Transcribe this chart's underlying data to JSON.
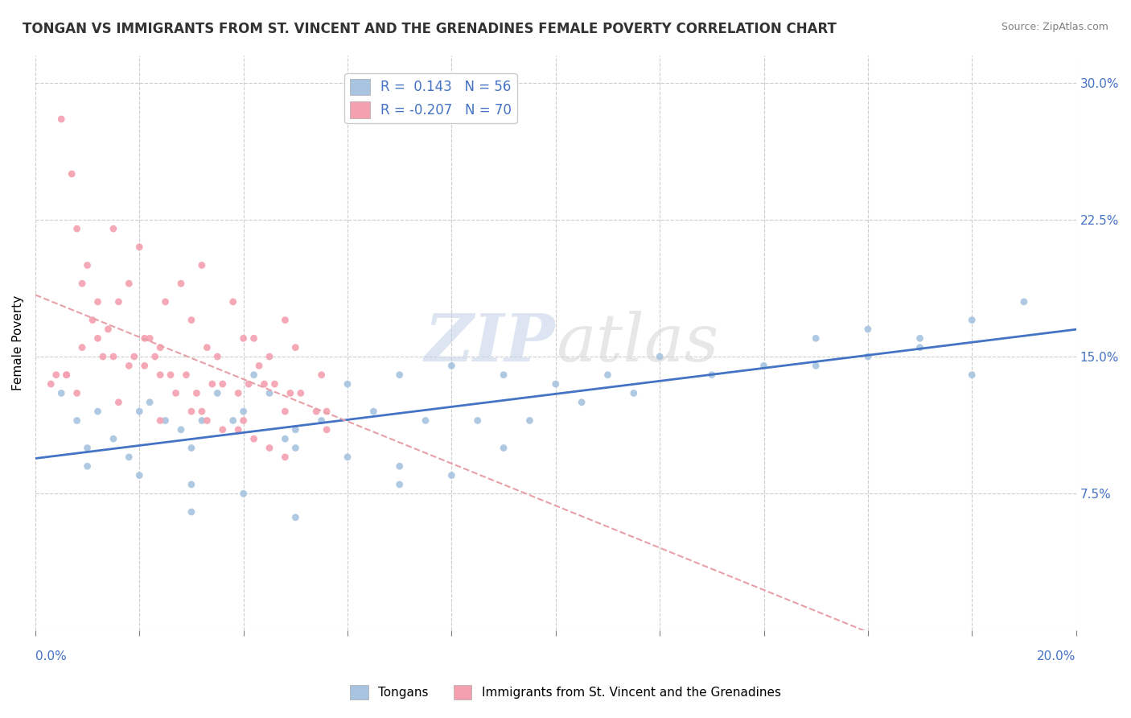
{
  "title": "TONGAN VS IMMIGRANTS FROM ST. VINCENT AND THE GRENADINES FEMALE POVERTY CORRELATION CHART",
  "source": "Source: ZipAtlas.com",
  "ylabel": "Female Poverty",
  "yticks": [
    0.0,
    0.075,
    0.15,
    0.225,
    0.3
  ],
  "ytick_labels": [
    "",
    "7.5%",
    "15.0%",
    "22.5%",
    "30.0%"
  ],
  "xlim": [
    0.0,
    0.2
  ],
  "ylim": [
    0.0,
    0.315
  ],
  "R_tongan": 0.143,
  "N_tongan": 56,
  "R_vincent": -0.207,
  "N_vincent": 70,
  "legend_label_1": "Tongans",
  "legend_label_2": "Immigrants from St. Vincent and the Grenadines",
  "color_tongan": "#a8c4e0",
  "color_vincent": "#f4a0b0",
  "trendline_tongan_color": "#4472c4",
  "trendline_vincent_color": "#e8a0a8",
  "watermark_zip": "ZIP",
  "watermark_atlas": "atlas",
  "tongan_x": [
    0.005,
    0.008,
    0.01,
    0.012,
    0.015,
    0.018,
    0.02,
    0.022,
    0.025,
    0.028,
    0.03,
    0.032,
    0.035,
    0.038,
    0.04,
    0.042,
    0.045,
    0.048,
    0.05,
    0.055,
    0.06,
    0.065,
    0.07,
    0.075,
    0.08,
    0.085,
    0.09,
    0.095,
    0.1,
    0.105,
    0.11,
    0.115,
    0.12,
    0.13,
    0.14,
    0.15,
    0.16,
    0.17,
    0.18,
    0.19,
    0.01,
    0.02,
    0.03,
    0.04,
    0.05,
    0.06,
    0.07,
    0.08,
    0.15,
    0.16,
    0.17,
    0.18,
    0.03,
    0.05,
    0.07,
    0.09
  ],
  "tongan_y": [
    0.13,
    0.115,
    0.1,
    0.12,
    0.105,
    0.095,
    0.12,
    0.125,
    0.115,
    0.11,
    0.1,
    0.115,
    0.13,
    0.115,
    0.12,
    0.14,
    0.13,
    0.105,
    0.11,
    0.115,
    0.135,
    0.12,
    0.14,
    0.115,
    0.145,
    0.115,
    0.14,
    0.115,
    0.135,
    0.125,
    0.14,
    0.13,
    0.15,
    0.14,
    0.145,
    0.145,
    0.15,
    0.16,
    0.17,
    0.18,
    0.09,
    0.085,
    0.08,
    0.075,
    0.1,
    0.095,
    0.09,
    0.085,
    0.16,
    0.165,
    0.155,
    0.14,
    0.065,
    0.062,
    0.08,
    0.1
  ],
  "vincent_x": [
    0.005,
    0.008,
    0.01,
    0.012,
    0.015,
    0.018,
    0.02,
    0.022,
    0.025,
    0.028,
    0.03,
    0.032,
    0.035,
    0.038,
    0.04,
    0.042,
    0.045,
    0.048,
    0.05,
    0.055,
    0.006,
    0.009,
    0.011,
    0.013,
    0.016,
    0.019,
    0.021,
    0.023,
    0.026,
    0.029,
    0.031,
    0.033,
    0.036,
    0.039,
    0.041,
    0.043,
    0.046,
    0.049,
    0.051,
    0.056,
    0.007,
    0.014,
    0.024,
    0.034,
    0.044,
    0.054,
    0.004,
    0.008,
    0.016,
    0.024,
    0.032,
    0.04,
    0.048,
    0.056,
    0.003,
    0.006,
    0.009,
    0.012,
    0.015,
    0.018,
    0.021,
    0.024,
    0.027,
    0.03,
    0.033,
    0.036,
    0.039,
    0.042,
    0.045,
    0.048
  ],
  "vincent_y": [
    0.28,
    0.22,
    0.2,
    0.18,
    0.22,
    0.19,
    0.21,
    0.16,
    0.18,
    0.19,
    0.17,
    0.2,
    0.15,
    0.18,
    0.16,
    0.16,
    0.15,
    0.17,
    0.155,
    0.14,
    0.14,
    0.19,
    0.17,
    0.15,
    0.18,
    0.15,
    0.16,
    0.15,
    0.14,
    0.14,
    0.13,
    0.155,
    0.135,
    0.13,
    0.135,
    0.145,
    0.135,
    0.13,
    0.13,
    0.12,
    0.25,
    0.165,
    0.155,
    0.135,
    0.135,
    0.12,
    0.14,
    0.13,
    0.125,
    0.115,
    0.12,
    0.115,
    0.12,
    0.11,
    0.135,
    0.14,
    0.155,
    0.16,
    0.15,
    0.145,
    0.145,
    0.14,
    0.13,
    0.12,
    0.115,
    0.11,
    0.11,
    0.105,
    0.1,
    0.095
  ]
}
